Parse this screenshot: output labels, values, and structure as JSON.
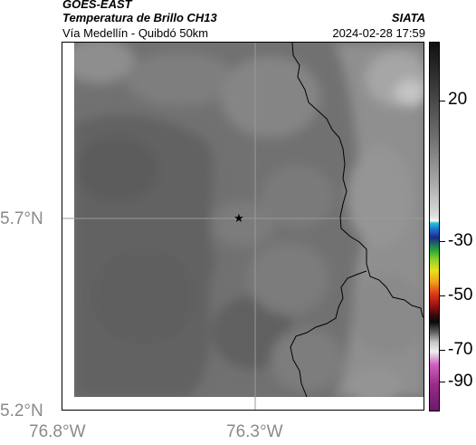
{
  "header": {
    "satellite": "GOES-EAST",
    "product": "Temperatura de Brillo CH13",
    "agency": "SIATA",
    "region": "Vía Medellín - Quibdó 50km",
    "timestamp": "2024-02-28 17:59"
  },
  "map": {
    "lat_labels": [
      "5.7°N",
      "5.2°N"
    ],
    "lon_labels": [
      "76.8°W",
      "76.3°W"
    ],
    "marker_symbol": "★"
  },
  "colorbar": {
    "tick_labels": [
      "20",
      "-30",
      "-50",
      "-70",
      "-90"
    ]
  },
  "colors": {
    "field_base": "#6e6e6e",
    "field_dark": "#5e5e5e",
    "field_light": "#9a9a9a",
    "borders": "#000000"
  }
}
